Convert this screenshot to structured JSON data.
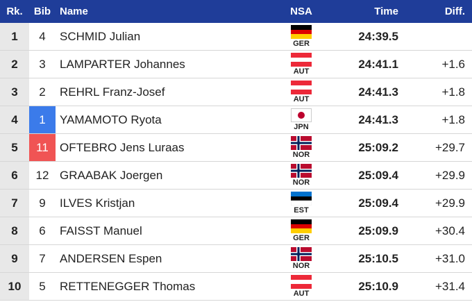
{
  "table": {
    "header": [
      "Rk.",
      "Bib",
      "Name",
      "NSA",
      "Time",
      "Diff."
    ],
    "rows": [
      [
        1,
        4,
        "SCHMID Julian",
        "GER",
        "24:39.5"
      ],
      [
        2,
        3,
        "LAMPARTER Johannes",
        "AUT",
        "24:41.1",
        "+1.6"
      ],
      [
        3,
        2,
        "REHRL Franz-Josef",
        "AUT",
        "24:41.3",
        "+1.8"
      ],
      [
        4,
        1,
        "YAMAMOTO Ryota",
        "JPN",
        "24:41.3",
        "+1.8"
      ],
      [
        5,
        11,
        "OFTEBRO Jens Luraas",
        "NOR",
        "25:09.2",
        "+29.7"
      ],
      [
        6,
        12,
        "GRAABAK Joergen",
        "NOR",
        "25:09.4",
        "+29.9"
      ],
      [
        7,
        9,
        "ILVES Kristjan",
        "EST",
        "25:09.4",
        "+29.9"
      ],
      [
        8,
        6,
        "FAISST Manuel",
        "GER",
        "25:09.9",
        "+30.4"
      ],
      [
        9,
        7,
        "ANDERSEN Espen",
        "NOR",
        "25:10.5",
        "+31.0"
      ],
      [
        10,
        5,
        "RETTENEGGER Thomas",
        "AUT",
        "25:10.9",
        "+31.4"
      ]
    ]
  }
}
